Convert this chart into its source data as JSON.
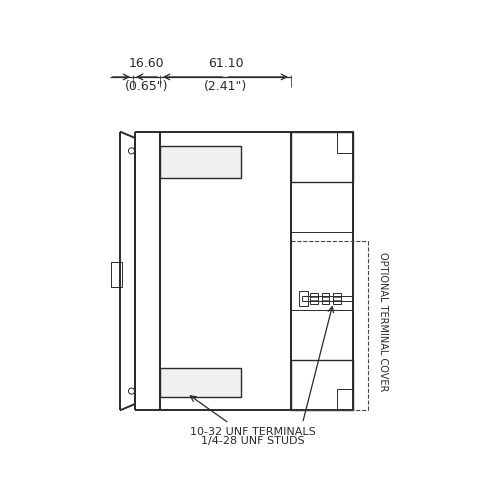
{
  "bg_color": "#ffffff",
  "line_color": "#2a2a2a",
  "dim1_label": "16.60",
  "dim1_sub": "(0.65\")",
  "dim2_label": "61.10",
  "dim2_sub": "(2.41\")",
  "label_terminals": "10-32 UNF TERMINALS",
  "label_studs": "1/4-28 UNF STUDS",
  "label_cover": "OPTIONAL TERMINAL COVER",
  "font_size_dim": 9.0,
  "font_size_label": 8.0,
  "font_size_cover": 7.0
}
